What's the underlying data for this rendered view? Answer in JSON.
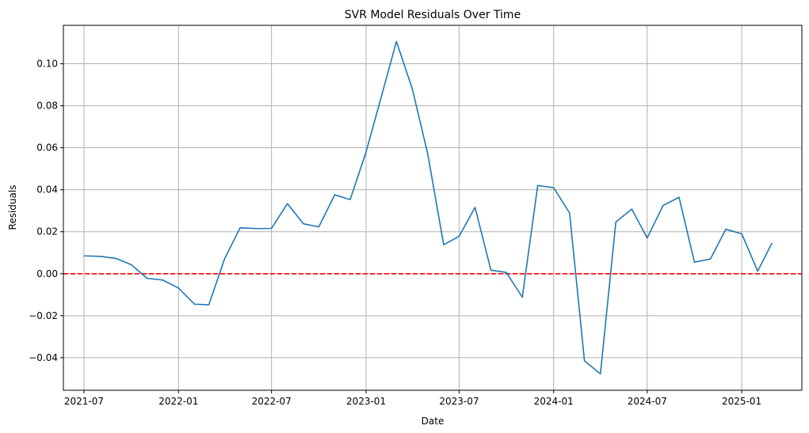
{
  "chart_data": {
    "type": "line",
    "title": "SVR Model Residuals Over Time",
    "xlabel": "Date",
    "ylabel": "Residuals",
    "x_ticks": [
      "2021-07",
      "2022-01",
      "2022-07",
      "2023-01",
      "2023-07",
      "2024-01",
      "2024-07",
      "2025-01"
    ],
    "y_ticks": [
      -0.04,
      -0.02,
      0.0,
      0.02,
      0.04,
      0.06,
      0.08,
      0.1
    ],
    "y_tick_labels": [
      "−0.04",
      "−0.02",
      "0.00",
      "0.02",
      "0.04",
      "0.06",
      "0.08",
      "0.10"
    ],
    "xlim": [
      "2021-05-22",
      "2025-04-28"
    ],
    "ylim": [
      -0.0555,
      0.1183
    ],
    "grid": true,
    "reference_line": {
      "y": 0,
      "color": "#ff0000",
      "style": "dashed"
    },
    "series": [
      {
        "color": "#1f77b4",
        "x": [
          "2021-07-01",
          "2021-08-01",
          "2021-09-01",
          "2021-10-01",
          "2021-11-01",
          "2021-12-01",
          "2022-01-01",
          "2022-02-01",
          "2022-03-01",
          "2022-04-01",
          "2022-05-01",
          "2022-06-01",
          "2022-07-01",
          "2022-08-01",
          "2022-09-01",
          "2022-10-01",
          "2022-11-01",
          "2022-12-01",
          "2023-01-01",
          "2023-02-01",
          "2023-03-01",
          "2023-04-01",
          "2023-05-01",
          "2023-06-01",
          "2023-07-01",
          "2023-08-01",
          "2023-09-01",
          "2023-10-01",
          "2023-11-01",
          "2023-12-01",
          "2024-01-01",
          "2024-02-01",
          "2024-03-01",
          "2024-04-01",
          "2024-05-01",
          "2024-06-01",
          "2024-07-01",
          "2024-08-01",
          "2024-09-01",
          "2024-10-01",
          "2024-11-01",
          "2024-12-01",
          "2025-01-01",
          "2025-02-01",
          "2025-03-01"
        ],
        "values": [
          0.0085,
          0.0083,
          0.0073,
          0.0043,
          -0.0022,
          -0.003,
          -0.0068,
          -0.0145,
          -0.0148,
          0.0073,
          0.0219,
          0.0215,
          0.0216,
          0.0334,
          0.0238,
          0.0223,
          0.0376,
          0.0353,
          0.058,
          0.0855,
          0.1106,
          0.088,
          0.057,
          0.0138,
          0.0178,
          0.0316,
          0.0017,
          0.0006,
          -0.0112,
          0.042,
          0.041,
          0.0289,
          -0.0415,
          -0.0477,
          0.0246,
          0.0308,
          0.017,
          0.0325,
          0.0364,
          0.0055,
          0.007,
          0.0212,
          0.019,
          0.0012,
          0.0147
        ]
      }
    ]
  }
}
